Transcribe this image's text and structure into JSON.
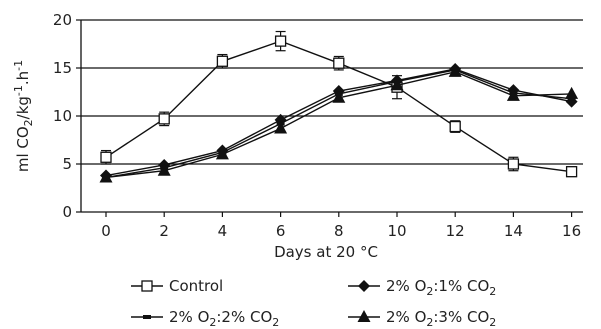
{
  "chart_data": {
    "type": "line",
    "xlabel": "Days at 20 °C",
    "ylabel": {
      "prefix": "ml CO",
      "sub1": "2",
      "mid": "/kg",
      "sup": "-1",
      "suffix": ".h",
      "sup2": "-1"
    },
    "x": [
      0,
      2,
      4,
      6,
      8,
      10,
      12,
      14,
      16
    ],
    "xticks": [
      "0",
      "2",
      "4",
      "6",
      "8",
      "10",
      "12",
      "14",
      "16"
    ],
    "yticks": [
      "0",
      "5",
      "10",
      "15",
      "20"
    ],
    "ylim": [
      0,
      20
    ],
    "grid": "horizontal",
    "legend_position": "bottom",
    "series": [
      {
        "name": "Control",
        "legend_parts": [
          "Control"
        ],
        "marker": "open-square",
        "values": [
          5.7,
          9.7,
          15.7,
          17.8,
          15.5,
          13.0,
          8.9,
          5.0,
          4.2
        ],
        "errors": [
          0.7,
          0.7,
          0.7,
          1.0,
          0.7,
          1.2,
          0.6,
          0.7,
          0.5
        ]
      },
      {
        "name": "2% O2:1% CO2",
        "legend_parts": [
          "2% O",
          "2",
          ":1% CO",
          "2"
        ],
        "marker": "diamond",
        "values": [
          3.8,
          4.9,
          6.4,
          9.6,
          12.6,
          13.7,
          14.9,
          12.7,
          11.5
        ],
        "errors": [
          0,
          0,
          0,
          0,
          0,
          0,
          0,
          0,
          0
        ]
      },
      {
        "name": "2% O2:2% CO2",
        "legend_parts": [
          "2% O",
          "2",
          ":2% CO",
          "2"
        ],
        "marker": "dash",
        "values": [
          3.6,
          4.6,
          6.2,
          9.2,
          12.3,
          13.6,
          14.8,
          12.4,
          11.8
        ],
        "errors": [
          0,
          0,
          0,
          0,
          0,
          0,
          0,
          0,
          0
        ]
      },
      {
        "name": "2% O2:3% CO2",
        "legend_parts": [
          "2% O",
          "2",
          ":3% CO",
          "2"
        ],
        "marker": "filled-triangle",
        "values": [
          3.6,
          4.3,
          6.0,
          8.7,
          11.9,
          13.2,
          14.6,
          12.1,
          12.3
        ],
        "errors": [
          0,
          0,
          0,
          0,
          0,
          0,
          0,
          0,
          0
        ]
      }
    ]
  }
}
